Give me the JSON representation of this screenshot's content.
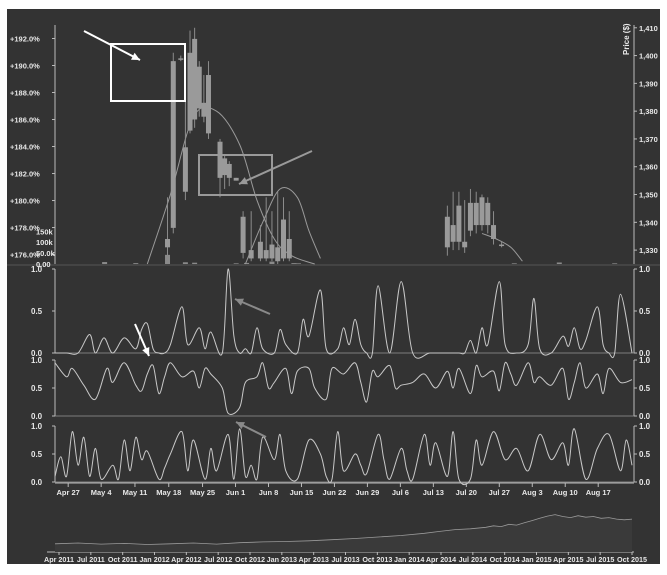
{
  "chart_data": [
    {
      "type": "candlestick",
      "left_axis_ticks": [
        "+192.0%",
        "+190.0%",
        "+188.0%",
        "+186.0%",
        "+184.0%",
        "+182.0%",
        "+180.0%",
        "+178.0%",
        "+176.0%"
      ],
      "left_axis_range": [
        175.3,
        193.0
      ],
      "ylabel_right": "Price ($)",
      "right_axis_ticks": [
        "1,410",
        "1,400",
        "1,390",
        "1,380",
        "1,370",
        "1,360",
        "1,350",
        "1,340",
        "1,330"
      ],
      "right_axis_range": [
        1325,
        1411
      ],
      "volume_ticks": [
        "150k",
        "100k",
        "50.0k",
        "0.00"
      ],
      "volume_range": [
        0,
        170000
      ],
      "candles": [
        {
          "x": 19.5,
          "open": 1331,
          "close": 1334,
          "high": 1349,
          "low": 1328
        },
        {
          "x": 20.5,
          "open": 1338,
          "close": 1398,
          "high": 1401,
          "low": 1336
        },
        {
          "x": 21.8,
          "open": 1399,
          "close": 1399,
          "high": 1400,
          "low": 1398
        },
        {
          "x": 22.6,
          "open": 1351,
          "close": 1367,
          "high": 1385,
          "low": 1348
        },
        {
          "x": 23.4,
          "open": 1373,
          "close": 1401,
          "high": 1409,
          "low": 1372
        },
        {
          "x": 24.2,
          "open": 1377,
          "close": 1406,
          "high": 1410,
          "low": 1374
        },
        {
          "x": 25.0,
          "open": 1381,
          "close": 1396,
          "high": 1398,
          "low": 1378
        },
        {
          "x": 25.8,
          "open": 1378,
          "close": 1383,
          "high": 1393,
          "low": 1376
        },
        {
          "x": 26.6,
          "open": 1372,
          "close": 1393,
          "high": 1398,
          "low": 1370
        },
        {
          "x": 28.6,
          "open": 1356,
          "close": 1369,
          "high": 1370,
          "low": 1349
        },
        {
          "x": 29.4,
          "open": 1357,
          "close": 1363,
          "high": 1364,
          "low": 1352
        },
        {
          "x": 30.2,
          "open": 1356,
          "close": 1361,
          "high": 1362,
          "low": 1353
        },
        {
          "x": 31.4,
          "open": 1355,
          "close": 1356,
          "high": 1356,
          "low": 1355
        },
        {
          "x": 32.6,
          "open": 1329,
          "close": 1342,
          "high": 1344,
          "low": 1327
        },
        {
          "x": 34.0,
          "open": 1327,
          "close": 1330,
          "high": 1344,
          "low": 1326
        },
        {
          "x": 35.6,
          "open": 1327,
          "close": 1333,
          "high": 1339,
          "low": 1326
        },
        {
          "x": 36.6,
          "open": 1327,
          "close": 1330,
          "high": 1349,
          "low": 1326
        },
        {
          "x": 37.6,
          "open": 1327,
          "close": 1332,
          "high": 1344,
          "low": 1326
        },
        {
          "x": 38.6,
          "open": 1326,
          "close": 1331,
          "high": 1351,
          "low": 1325
        },
        {
          "x": 39.6,
          "open": 1327,
          "close": 1341,
          "high": 1349,
          "low": 1326
        },
        {
          "x": 40.6,
          "open": 1327,
          "close": 1334,
          "high": 1344,
          "low": 1326
        },
        {
          "x": 68.0,
          "open": 1331,
          "close": 1342,
          "high": 1346,
          "low": 1328
        },
        {
          "x": 69.0,
          "open": 1333,
          "close": 1339,
          "high": 1351,
          "low": 1330
        },
        {
          "x": 70.0,
          "open": 1333,
          "close": 1346,
          "high": 1351,
          "low": 1330
        },
        {
          "x": 71.0,
          "open": 1331,
          "close": 1333,
          "high": 1348,
          "low": 1329
        },
        {
          "x": 72.0,
          "open": 1337,
          "close": 1347,
          "high": 1352,
          "low": 1335
        },
        {
          "x": 73.0,
          "open": 1339,
          "close": 1347,
          "high": 1351,
          "low": 1336
        },
        {
          "x": 74.0,
          "open": 1339,
          "close": 1349,
          "high": 1350,
          "low": 1337
        },
        {
          "x": 75.0,
          "open": 1339,
          "close": 1347,
          "high": 1349,
          "low": 1336
        },
        {
          "x": 76.0,
          "open": 1334,
          "close": 1339,
          "high": 1344,
          "low": 1332
        },
        {
          "x": 77.4,
          "open": 1332,
          "close": 1332,
          "high": 1333,
          "low": 1331
        }
      ],
      "volume_bars": [
        {
          "x": 8.6,
          "value": 9000
        },
        {
          "x": 14.0,
          "value": 4000
        },
        {
          "x": 19.5,
          "value": 42000
        },
        {
          "x": 22.6,
          "value": 8000
        },
        {
          "x": 24.2,
          "value": 6000
        },
        {
          "x": 31.4,
          "value": 3000
        },
        {
          "x": 33.2,
          "value": 5000
        },
        {
          "x": 37.6,
          "value": 11000
        },
        {
          "x": 41.4,
          "value": 4000
        },
        {
          "x": 42.2,
          "value": 3000
        },
        {
          "x": 79.6,
          "value": 3000
        },
        {
          "x": 87.4,
          "value": 7000
        },
        {
          "x": 97.0,
          "value": 3000
        }
      ],
      "overlay_curves": [
        {
          "x": [
            16,
            20,
            24,
            28,
            32,
            35,
            38,
            41,
            45
          ],
          "y": [
            1325,
            1350,
            1378,
            1380,
            1368,
            1348,
            1334,
            1328,
            1325
          ]
        },
        {
          "x": [
            33,
            36,
            39,
            42,
            44,
            46
          ],
          "y": [
            1325,
            1340,
            1352,
            1349,
            1337,
            1327
          ]
        },
        {
          "x": [
            74,
            76.5,
            79,
            81
          ],
          "y": [
            1336,
            1334,
            1331,
            1326
          ]
        }
      ],
      "annotations": [
        "box around candles near May 18",
        "box around candles near Jun 1",
        "arrow to boxed candle",
        "arrow to Jun 1 candles"
      ]
    },
    {
      "type": "line",
      "ylim": [
        0,
        1
      ],
      "y_ticks": [
        "1.0",
        "0.5",
        "0.0"
      ],
      "x": [
        0,
        2,
        4,
        6,
        7,
        8.5,
        10,
        12,
        14,
        15,
        16,
        17,
        18,
        19,
        20,
        22,
        23,
        25,
        26,
        27,
        29,
        30,
        31,
        32,
        33,
        34,
        35,
        36,
        38,
        39,
        40,
        42,
        43,
        44,
        46,
        47,
        49,
        50,
        51,
        52,
        53,
        54,
        55,
        56,
        58,
        60,
        62,
        65,
        68,
        70,
        71,
        72,
        73,
        74,
        75,
        77,
        78,
        80,
        82,
        83,
        84,
        86,
        88,
        89,
        90,
        91,
        92,
        94,
        95,
        96,
        97,
        98,
        100
      ],
      "y": [
        0,
        0,
        0,
        0.22,
        0,
        0.18,
        0,
        0.18,
        0.05,
        0.28,
        0.35,
        0.05,
        0,
        0,
        0.1,
        0.55,
        0.1,
        0.3,
        0.05,
        0.25,
        0,
        1.0,
        0.2,
        0,
        0.05,
        0,
        0.3,
        0.05,
        0,
        0.28,
        0.1,
        0,
        0.4,
        0.2,
        0.75,
        0.05,
        0.05,
        0.3,
        0.1,
        0.4,
        0.1,
        0,
        0,
        0.8,
        0,
        0.85,
        0,
        0,
        0,
        0,
        0,
        0.15,
        0,
        0.3,
        0.1,
        0.85,
        0.1,
        0,
        0.1,
        0.65,
        0.05,
        0,
        0.2,
        0.08,
        0.3,
        0.05,
        0.15,
        0.55,
        0.1,
        0,
        0,
        0.7,
        0
      ]
    },
    {
      "type": "line",
      "ylim": [
        0,
        1
      ],
      "y_ticks": [
        "1.0",
        "0.5",
        "0.0"
      ],
      "x": [
        0,
        2,
        3,
        5,
        7,
        9,
        10,
        12,
        14,
        15,
        16,
        17,
        18,
        19,
        20,
        22,
        24,
        25,
        26,
        27,
        29,
        30,
        32,
        33,
        35,
        36,
        37,
        38,
        40,
        41,
        42,
        44,
        45,
        47,
        48,
        50,
        52,
        53,
        54,
        55,
        56,
        58,
        59,
        60,
        62,
        64,
        66,
        68,
        69,
        70,
        72,
        73,
        74,
        76,
        77,
        78,
        79,
        80,
        82,
        83,
        84,
        86,
        88,
        89,
        90,
        91,
        92,
        94,
        95,
        96,
        98,
        100
      ],
      "y": [
        0.95,
        0.7,
        0.85,
        0.55,
        0.3,
        0.85,
        0.6,
        0.95,
        0.55,
        0.45,
        0.75,
        0.9,
        0.4,
        0.7,
        0.95,
        0.7,
        0.8,
        0.5,
        0.85,
        0.75,
        0.5,
        0.05,
        0.15,
        0.6,
        0.7,
        0.95,
        0.5,
        0.6,
        0.85,
        0.4,
        0.8,
        0.85,
        0.5,
        0.3,
        0.85,
        0.75,
        0.95,
        0.6,
        0.25,
        0.8,
        0.7,
        0.9,
        0.5,
        0.55,
        0.6,
        0.75,
        0.5,
        0.8,
        0.5,
        0.85,
        0.4,
        0.9,
        0.7,
        0.8,
        0.45,
        0.95,
        0.75,
        0.55,
        0.95,
        0.6,
        0.7,
        0.55,
        0.85,
        0.3,
        0.6,
        0.95,
        0.5,
        0.75,
        0.4,
        0.85,
        0.6,
        0.65
      ]
    },
    {
      "type": "line",
      "ylim": [
        0,
        1
      ],
      "y_ticks": [
        "1.0",
        "0.5",
        "0.0"
      ],
      "x": [
        0,
        1,
        2,
        3,
        4,
        5,
        6,
        7,
        8,
        10,
        11,
        12,
        13,
        14,
        15,
        16,
        18,
        19,
        20,
        22,
        23,
        24,
        26,
        27,
        28,
        30,
        31,
        32,
        33,
        34,
        35,
        36,
        38,
        39,
        40,
        42,
        44,
        46,
        47,
        48,
        49,
        50,
        52,
        53,
        54,
        56,
        57,
        58,
        60,
        61,
        62,
        64,
        65,
        66,
        68,
        69,
        70,
        72,
        73,
        74,
        76,
        78,
        80,
        82,
        84,
        86,
        88,
        89,
        90,
        92,
        94,
        96,
        98,
        99,
        100
      ],
      "y": [
        0.1,
        0.45,
        0.1,
        0.9,
        0.3,
        0.8,
        0.1,
        0.6,
        0.05,
        0.3,
        0.05,
        0.75,
        0.2,
        0.8,
        0.4,
        0.55,
        0.05,
        0.25,
        0.5,
        0.9,
        0.2,
        0.75,
        0.05,
        0.6,
        0.2,
        0.85,
        0.05,
        0.95,
        0.1,
        0.3,
        0.05,
        0.8,
        0.4,
        0.85,
        0.2,
        0.05,
        0.75,
        0.5,
        0.1,
        0.05,
        0.9,
        0.2,
        0.5,
        0.3,
        0.15,
        0.85,
        0.4,
        0.05,
        0.6,
        0.2,
        0.05,
        0.85,
        0.3,
        0.7,
        0.1,
        0.9,
        0.05,
        0.05,
        0.75,
        0.3,
        0.9,
        0.4,
        0.6,
        0.2,
        0.85,
        0.4,
        0.7,
        0.3,
        0.95,
        0.05,
        0.6,
        0.85,
        0.2,
        0.75,
        0.3
      ]
    },
    {
      "type": "line",
      "x_ticks": [
        {
          "x": 3.2,
          "label": "Apr 27"
        },
        {
          "x": 11.2,
          "label": "May 4"
        },
        {
          "x": 19.4,
          "label": "May 11"
        },
        {
          "x": 27.6,
          "label": "May 18"
        },
        {
          "x": 35.8,
          "label": "May 25"
        },
        {
          "x": 43.8,
          "label": "Jun 1"
        },
        {
          "x": 51.8,
          "label": "Jun 8"
        },
        {
          "x": 59.8,
          "label": "Jun 15"
        },
        {
          "x": 67.8,
          "label": "Jun 22"
        },
        {
          "x": 75.8,
          "label": "Jun 29"
        },
        {
          "x": 83.8,
          "label": "Jul 6"
        },
        {
          "x": 91.8,
          "label": "Jul 13"
        },
        {
          "x": 99.8,
          "label": "Jul 20"
        },
        {
          "x": 107.8,
          "label": "Jul 27"
        },
        {
          "x": 115.8,
          "label": "Aug 3"
        },
        {
          "x": 123.8,
          "label": "Aug 10"
        },
        {
          "x": 131.8,
          "label": "Aug 17"
        }
      ],
      "x_range": [
        0,
        140
      ]
    },
    {
      "type": "area",
      "x_ticks": [
        "Apr 2011",
        "Jul 2011",
        "Oct 2011",
        "Jan 2012",
        "Apr 2012",
        "Jul 2012",
        "Oct 2012",
        "Jan 2013",
        "Apr 2013",
        "Jul 2013",
        "Oct 2013",
        "Jan 2014",
        "Apr 2014",
        "Jul 2014",
        "Oct 2014",
        "Jan 2015",
        "Apr 2015",
        "Jul 2015",
        "Oct 2015"
      ],
      "x": [
        0,
        3,
        6,
        9,
        12,
        15,
        18,
        21,
        24,
        27,
        30,
        33,
        36,
        39,
        42,
        45,
        48,
        50,
        52,
        54,
        56,
        57,
        58,
        59,
        60,
        61,
        62,
        63,
        64,
        65,
        66,
        67,
        68,
        69,
        70,
        71,
        72,
        73,
        74,
        75
      ],
      "y": [
        22,
        24,
        21,
        23,
        20,
        22,
        24,
        21,
        25,
        27,
        28,
        30,
        33,
        36,
        40,
        44,
        50,
        55,
        60,
        62,
        66,
        70,
        68,
        74,
        72,
        78,
        84,
        90,
        96,
        100,
        95,
        92,
        97,
        93,
        95,
        90,
        92,
        88,
        86,
        88
      ],
      "ylim": [
        0,
        115
      ]
    }
  ]
}
